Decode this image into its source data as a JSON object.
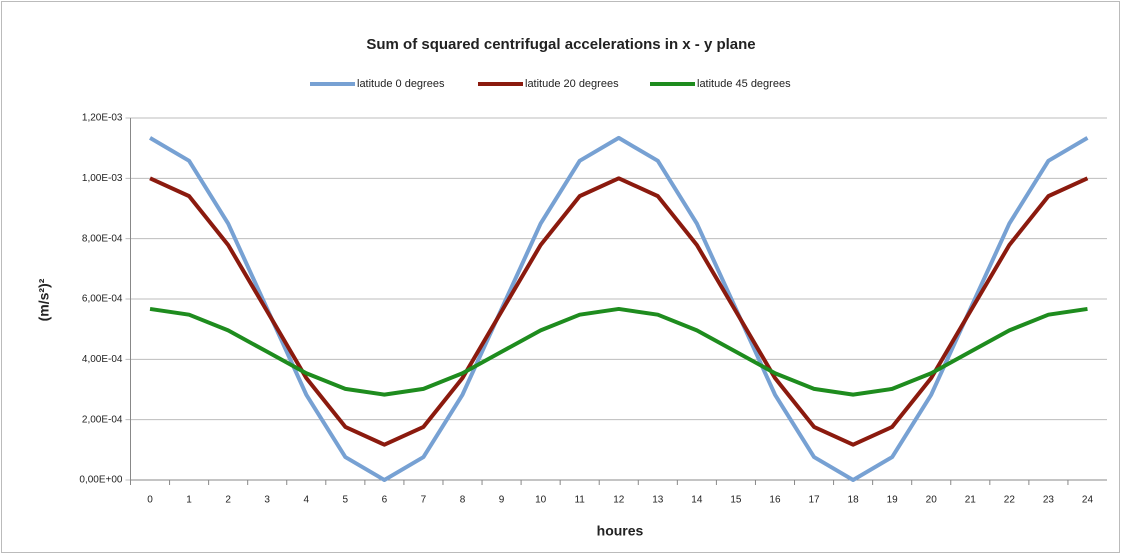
{
  "chart_data": {
    "type": "line",
    "title": "Sum of squared centrifugal accelerations in x - y  plane",
    "xlabel": "houres",
    "ylabel": "(m/s²)²",
    "categories": [
      "0",
      "1",
      "2",
      "3",
      "4",
      "5",
      "6",
      "7",
      "8",
      "9",
      "10",
      "11",
      "12",
      "13",
      "14",
      "15",
      "16",
      "17",
      "18",
      "19",
      "20",
      "21",
      "22",
      "23",
      "24"
    ],
    "series": [
      {
        "name": "latitude 0 degrees",
        "color": "#77a1d3",
        "values": [
          0.001134,
          0.001058,
          0.00085,
          0.000567,
          0.000283,
          7.6e-05,
          0,
          7.6e-05,
          0.000283,
          0.000567,
          0.00085,
          0.001058,
          0.001134,
          0.001058,
          0.00085,
          0.000567,
          0.000283,
          7.6e-05,
          0,
          7.6e-05,
          0.000283,
          0.000567,
          0.00085,
          0.001058,
          0.001134
        ]
      },
      {
        "name": "latitude 20  degrees",
        "color": "#8b1a0e",
        "values": [
          0.001,
          0.000941,
          0.000779,
          0.000559,
          0.000338,
          0.000176,
          0.000117,
          0.000176,
          0.000338,
          0.000559,
          0.000779,
          0.000941,
          0.001,
          0.000941,
          0.000779,
          0.000559,
          0.000338,
          0.000176,
          0.000117,
          0.000176,
          0.000338,
          0.000559,
          0.000779,
          0.000941,
          0.001
        ]
      },
      {
        "name": "latitude 45 degrees",
        "color": "#1e8c1e",
        "values": [
          0.000567,
          0.000548,
          0.000496,
          0.000425,
          0.000354,
          0.000302,
          0.000283,
          0.000302,
          0.000354,
          0.000425,
          0.000496,
          0.000548,
          0.000567,
          0.000548,
          0.000496,
          0.000425,
          0.000354,
          0.000302,
          0.000283,
          0.000302,
          0.000354,
          0.000425,
          0.000496,
          0.000548,
          0.000567
        ]
      }
    ],
    "ylim": [
      0,
      0.0012
    ],
    "yticks": [
      {
        "value": 0,
        "label": "0,00E+00"
      },
      {
        "value": 0.0002,
        "label": "2,00E-04"
      },
      {
        "value": 0.0004,
        "label": "4,00E-04"
      },
      {
        "value": 0.0006,
        "label": "6,00E-04"
      },
      {
        "value": 0.0008,
        "label": "8,00E-04"
      },
      {
        "value": 0.001,
        "label": "1,00E-03"
      },
      {
        "value": 0.0012,
        "label": "1,20E-03"
      }
    ],
    "grid": true,
    "legend": "top"
  }
}
